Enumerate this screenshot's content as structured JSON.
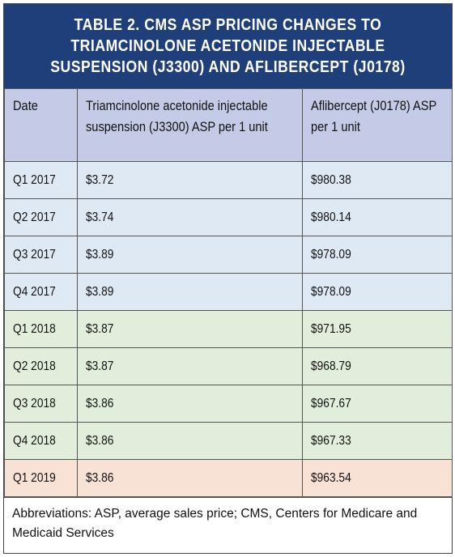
{
  "title": "TABLE 2. CMS ASP PRICING CHANGES TO TRIAMCINOLONE ACETONIDE INJECTABLE SUSPENSION (J3300) AND AFLIBERCEPT (J0178)",
  "headers": {
    "date": "Date",
    "triam": "Triamcinolone acetonide injectable suspension (J3300) ASP per 1 unit",
    "aflib": "Aflibercept (J0178) ASP per 1 unit"
  },
  "rows": [
    {
      "date": "Q1 2017",
      "triam": "$3.72",
      "aflib": "$980.38"
    },
    {
      "date": "Q2 2017",
      "triam": "$3.74",
      "aflib": "$980.14"
    },
    {
      "date": "Q3 2017",
      "triam": "$3.89",
      "aflib": "$978.09"
    },
    {
      "date": "Q4 2017",
      "triam": "$3.89",
      "aflib": "$978.09"
    },
    {
      "date": "Q1 2018",
      "triam": "$3.87",
      "aflib": "$971.95"
    },
    {
      "date": "Q2 2018",
      "triam": "$3.87",
      "aflib": "$968.79"
    },
    {
      "date": "Q3 2018",
      "triam": "$3.86",
      "aflib": "$967.67"
    },
    {
      "date": "Q4 2018",
      "triam": "$3.86",
      "aflib": "$967.33"
    },
    {
      "date": "Q1 2019",
      "triam": "$3.86",
      "aflib": "$963.54"
    }
  ],
  "footnote": "Abbreviations: ASP, average sales price; CMS, Centers for Medicare and Medicaid Services",
  "colors": {
    "title_bg": "#1e3f7a",
    "header_bg": "#c5cbe6",
    "year2017_bg": "#dfe9f4",
    "year2018_bg": "#e2eedb",
    "year2019_bg": "#f8e1d5"
  }
}
